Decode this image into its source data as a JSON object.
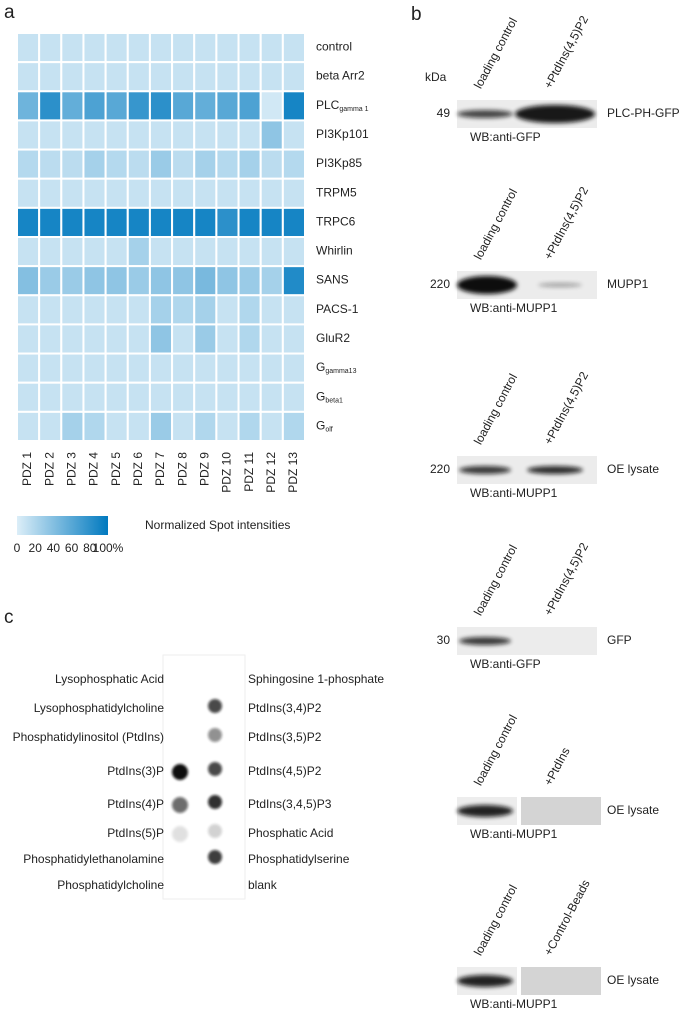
{
  "panel_labels": [
    "a",
    "b",
    "c"
  ],
  "chart_data": {
    "type": "heatmap",
    "columns": [
      "PDZ 1",
      "PDZ 2",
      "PDZ 3",
      "PDZ 4",
      "PDZ 5",
      "PDZ 6",
      "PDZ 7",
      "PDZ 8",
      "PDZ 9",
      "PDZ 10",
      "PDZ 11",
      "PDZ 12",
      "PDZ 13"
    ],
    "rows": [
      {
        "label": "control"
      },
      {
        "label": "beta Arr2"
      },
      {
        "label": "PLC",
        "sub": "gamma 1"
      },
      {
        "label": "PI3Kp101"
      },
      {
        "label": "PI3Kp85"
      },
      {
        "label": "TRPM5"
      },
      {
        "label": "TRPC6"
      },
      {
        "label": "Whirlin"
      },
      {
        "label": "SANS"
      },
      {
        "label": "PACS-1"
      },
      {
        "label": "GluR2"
      },
      {
        "label": "G",
        "sub": "gamma13"
      },
      {
        "label": "G",
        "sub": "beta1"
      },
      {
        "label": "G",
        "sub": "olf"
      }
    ],
    "values": [
      [
        10,
        10,
        10,
        10,
        10,
        10,
        10,
        10,
        10,
        10,
        10,
        10,
        10
      ],
      [
        10,
        10,
        10,
        10,
        10,
        10,
        10,
        10,
        10,
        10,
        10,
        10,
        10
      ],
      [
        50,
        80,
        55,
        65,
        60,
        75,
        80,
        60,
        55,
        60,
        65,
        5,
        90
      ],
      [
        10,
        10,
        10,
        10,
        10,
        10,
        10,
        10,
        10,
        10,
        10,
        35,
        10
      ],
      [
        18,
        15,
        15,
        25,
        18,
        15,
        30,
        15,
        25,
        18,
        25,
        15,
        18
      ],
      [
        10,
        10,
        10,
        10,
        10,
        10,
        10,
        10,
        10,
        10,
        10,
        10,
        10
      ],
      [
        90,
        90,
        90,
        90,
        90,
        90,
        90,
        90,
        90,
        80,
        90,
        90,
        90
      ],
      [
        10,
        10,
        10,
        10,
        10,
        25,
        10,
        10,
        10,
        10,
        10,
        10,
        10
      ],
      [
        40,
        30,
        30,
        35,
        35,
        30,
        35,
        35,
        45,
        35,
        30,
        25,
        85
      ],
      [
        10,
        10,
        10,
        10,
        10,
        10,
        25,
        20,
        25,
        10,
        20,
        10,
        10
      ],
      [
        10,
        10,
        10,
        10,
        10,
        10,
        35,
        10,
        30,
        10,
        20,
        10,
        10
      ],
      [
        10,
        10,
        10,
        10,
        10,
        10,
        10,
        10,
        10,
        10,
        10,
        10,
        10
      ],
      [
        10,
        10,
        10,
        10,
        10,
        10,
        10,
        10,
        10,
        10,
        10,
        10,
        10
      ],
      [
        10,
        10,
        25,
        20,
        10,
        10,
        30,
        10,
        20,
        10,
        20,
        10,
        20
      ]
    ],
    "colorbar_title": "Normalized Spot intensities",
    "zlim": [
      0,
      100
    ],
    "zticks": [
      0,
      20,
      40,
      60,
      80,
      {
        "value": 100,
        "label": "100%"
      }
    ],
    "colors": [
      "#dceef8",
      "#0079bf"
    ]
  },
  "kda_label": "kDa",
  "blots": [
    {
      "lanes": [
        "loading control",
        "+PtdIns(4,5)P2"
      ],
      "kda": "49",
      "wb": "WB:anti-GFP",
      "target": "PLC-PH-GFP"
    },
    {
      "lanes": [
        "loading control",
        "+PtdIns(4,5)P2"
      ],
      "kda": "220",
      "wb": "WB:anti-MUPP1",
      "target": "MUPP1"
    },
    {
      "lanes": [
        "loading control",
        "+PtdIns(4,5)P2"
      ],
      "kda": "220",
      "wb": "WB:anti-MUPP1",
      "target": "OE lysate"
    },
    {
      "lanes": [
        "loading control",
        "+PtdIns(4,5)P2"
      ],
      "kda": "30",
      "wb": "WB:anti-GFP",
      "target": "GFP"
    },
    {
      "lanes": [
        "loading control",
        "+PtdIns"
      ],
      "wb": "WB:anti-MUPP1",
      "target": "OE lysate"
    },
    {
      "lanes": [
        "loading control",
        "+Control-Beads"
      ],
      "wb": "WB:anti-MUPP1",
      "target": "OE lysate"
    }
  ],
  "dot_blot": {
    "left": [
      "Lysophosphatic Acid",
      "Lysophosphatidylcholine",
      "Phosphatidylinositol (PtdIns)",
      "PtdIns(3)P",
      "PtdIns(4)P",
      "PtdIns(5)P",
      "Phosphatidylethanolamine",
      "Phosphatidylcholine"
    ],
    "right": [
      "Sphingosine 1-phosphate",
      "PtdIns(3,4)P2",
      "PtdIns(3,5)P2",
      "PtdIns(4,5)P2",
      "PtdIns(3,4,5)P3",
      "Phosphatic Acid",
      "Phosphatidylserine",
      "blank"
    ]
  }
}
